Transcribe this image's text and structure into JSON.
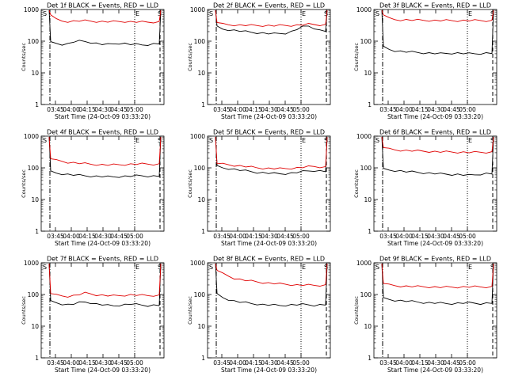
{
  "figure": {
    "ylabel": "Counts/sec",
    "xlabel": "Start Time (24-Oct-09 03:33:20)",
    "colors": {
      "events": "#000000",
      "lld": "#e00000",
      "axes": "#000000"
    },
    "marker_labels": {
      "start": "S",
      "end": "E"
    }
  },
  "chart_data": [
    {
      "type": "line",
      "title": "Det 1f BLACK = Events, RED = LLD",
      "xticks": [
        "03:45",
        "04:00",
        "04:15",
        "04:30",
        "04:45",
        "05:00"
      ],
      "yticks": [
        "1",
        "10",
        "100",
        "1000"
      ],
      "ylim": [
        1,
        1000
      ],
      "yscale": "log",
      "series": [
        {
          "name": "Events",
          "color": "#000000",
          "values": [
            90,
            85,
            80,
            82,
            95,
            100,
            98,
            92,
            85,
            80,
            78,
            82,
            86,
            84,
            80,
            78,
            76,
            78,
            82,
            84
          ]
        },
        {
          "name": "LLD",
          "color": "#e00000",
          "values": [
            700,
            480,
            430,
            420,
            430,
            440,
            440,
            430,
            420,
            415,
            410,
            412,
            418,
            420,
            410,
            405,
            400,
            398,
            402,
            405
          ]
        }
      ]
    },
    {
      "type": "line",
      "title": "Det 2f BLACK = Events, RED = LLD",
      "xticks": [
        "03:45",
        "04:00",
        "04:15",
        "04:30",
        "04:45",
        "05:00"
      ],
      "yticks": [
        "1",
        "10",
        "100",
        "1000"
      ],
      "ylim": [
        1,
        1000
      ],
      "yscale": "log",
      "series": [
        {
          "name": "Events",
          "color": "#000000",
          "values": [
            280,
            240,
            230,
            220,
            210,
            200,
            190,
            185,
            180,
            175,
            170,
            175,
            180,
            200,
            240,
            280,
            300,
            260,
            220,
            210
          ]
        },
        {
          "name": "LLD",
          "color": "#e00000",
          "values": [
            400,
            340,
            330,
            325,
            320,
            318,
            315,
            310,
            312,
            310,
            308,
            310,
            312,
            315,
            320,
            330,
            340,
            335,
            330,
            330
          ]
        }
      ]
    },
    {
      "type": "line",
      "title": "Det 3f BLACK = Events, RED = LLD",
      "xticks": [
        "03:45",
        "04:00",
        "04:15",
        "04:30",
        "04:45",
        "05:00"
      ],
      "yticks": [
        "1",
        "10",
        "100",
        "1000"
      ],
      "ylim": [
        1,
        1000
      ],
      "yscale": "log",
      "series": [
        {
          "name": "Events",
          "color": "#000000",
          "values": [
            65,
            55,
            50,
            48,
            46,
            45,
            44,
            43,
            42,
            41,
            40,
            41,
            42,
            42,
            41,
            40,
            40,
            41,
            42,
            42
          ]
        },
        {
          "name": "LLD",
          "color": "#e00000",
          "values": [
            700,
            520,
            480,
            470,
            470,
            465,
            460,
            455,
            455,
            450,
            450,
            448,
            445,
            445,
            448,
            450,
            450,
            448,
            445,
            445
          ]
        }
      ]
    },
    {
      "type": "line",
      "title": "Det 4f BLACK = Events, RED = LLD",
      "xticks": [
        "03:45",
        "04:00",
        "04:15",
        "04:30",
        "04:45",
        "05:00"
      ],
      "yticks": [
        "1",
        "10",
        "100",
        "1000"
      ],
      "ylim": [
        1,
        1000
      ],
      "yscale": "log",
      "series": [
        {
          "name": "Events",
          "color": "#000000",
          "values": [
            75,
            68,
            65,
            62,
            60,
            58,
            56,
            55,
            54,
            53,
            52,
            52,
            53,
            54,
            55,
            56,
            56,
            55,
            55,
            55
          ]
        },
        {
          "name": "LLD",
          "color": "#e00000",
          "values": [
            200,
            170,
            160,
            150,
            145,
            140,
            135,
            130,
            128,
            125,
            124,
            124,
            125,
            128,
            130,
            132,
            132,
            131,
            130,
            130
          ]
        }
      ]
    },
    {
      "type": "line",
      "title": "Det 5f BLACK = Events, RED = LLD",
      "xticks": [
        "03:45",
        "04:00",
        "04:15",
        "04:30",
        "04:45",
        "05:00"
      ],
      "yticks": [
        "1",
        "10",
        "100",
        "1000"
      ],
      "ylim": [
        1,
        1000
      ],
      "yscale": "log",
      "series": [
        {
          "name": "Events",
          "color": "#000000",
          "values": [
            110,
            100,
            95,
            90,
            85,
            80,
            76,
            72,
            70,
            68,
            66,
            65,
            66,
            68,
            72,
            76,
            80,
            82,
            80,
            78
          ]
        },
        {
          "name": "LLD",
          "color": "#e00000",
          "values": [
            140,
            130,
            125,
            120,
            115,
            110,
            105,
            100,
            98,
            96,
            95,
            94,
            95,
            97,
            100,
            104,
            108,
            110,
            108,
            106
          ]
        }
      ]
    },
    {
      "type": "line",
      "title": "Det 6f BLACK = Events, RED = LLD",
      "xticks": [
        "03:45",
        "04:00",
        "04:15",
        "04:30",
        "04:45",
        "05:00"
      ],
      "yticks": [
        "1",
        "10",
        "100",
        "1000"
      ],
      "ylim": [
        1,
        1000
      ],
      "yscale": "log",
      "series": [
        {
          "name": "Events",
          "color": "#000000",
          "values": [
            90,
            85,
            82,
            80,
            76,
            74,
            72,
            70,
            68,
            66,
            64,
            63,
            62,
            62,
            60,
            58,
            60,
            64,
            66,
            66
          ]
        },
        {
          "name": "LLD",
          "color": "#e00000",
          "values": [
            450,
            390,
            370,
            360,
            350,
            345,
            340,
            335,
            330,
            325,
            320,
            318,
            315,
            312,
            310,
            308,
            308,
            310,
            312,
            312
          ]
        }
      ]
    },
    {
      "type": "line",
      "title": "Det 7f BLACK = Events, RED = LLD",
      "xticks": [
        "03:45",
        "04:00",
        "04:15",
        "04:30",
        "04:45",
        "05:00"
      ],
      "yticks": [
        "1",
        "10",
        "100",
        "1000"
      ],
      "ylim": [
        1,
        1000
      ],
      "yscale": "log",
      "series": [
        {
          "name": "Events",
          "color": "#000000",
          "values": [
            60,
            55,
            50,
            48,
            50,
            55,
            58,
            55,
            50,
            48,
            45,
            44,
            46,
            48,
            50,
            48,
            46,
            45,
            46,
            46
          ]
        },
        {
          "name": "LLD",
          "color": "#e00000",
          "values": [
            110,
            95,
            90,
            88,
            92,
            100,
            110,
            105,
            98,
            95,
            92,
            90,
            92,
            95,
            98,
            96,
            94,
            92,
            94,
            94
          ]
        }
      ]
    },
    {
      "type": "line",
      "title": "Det 8f BLACK = Events, RED = LLD",
      "xticks": [
        "03:45",
        "04:00",
        "04:15",
        "04:30",
        "04:45",
        "05:00"
      ],
      "yticks": [
        "1",
        "10",
        "100",
        "1000"
      ],
      "ylim": [
        1,
        1000
      ],
      "yscale": "log",
      "series": [
        {
          "name": "Events",
          "color": "#000000",
          "values": [
            100,
            80,
            70,
            62,
            58,
            55,
            52,
            50,
            48,
            47,
            46,
            45,
            46,
            47,
            48,
            48,
            47,
            46,
            47,
            48
          ]
        },
        {
          "name": "LLD",
          "color": "#e00000",
          "values": [
            600,
            450,
            380,
            330,
            300,
            280,
            265,
            250,
            240,
            230,
            222,
            215,
            210,
            205,
            200,
            198,
            196,
            195,
            196,
            198
          ]
        }
      ]
    },
    {
      "type": "line",
      "title": "Det 9f BLACK = Events, RED = LLD",
      "xticks": [
        "03:45",
        "04:00",
        "04:15",
        "04:30",
        "04:45",
        "05:00"
      ],
      "yticks": [
        "1",
        "10",
        "100",
        "1000"
      ],
      "ylim": [
        1,
        1000
      ],
      "yscale": "log",
      "series": [
        {
          "name": "Events",
          "color": "#000000",
          "values": [
            75,
            70,
            66,
            64,
            62,
            60,
            58,
            56,
            55,
            54,
            53,
            52,
            52,
            53,
            54,
            54,
            53,
            52,
            53,
            54
          ]
        },
        {
          "name": "LLD",
          "color": "#e00000",
          "values": [
            230,
            200,
            190,
            185,
            182,
            180,
            178,
            176,
            174,
            172,
            170,
            170,
            171,
            172,
            174,
            175,
            175,
            174,
            174,
            175
          ]
        }
      ]
    }
  ]
}
